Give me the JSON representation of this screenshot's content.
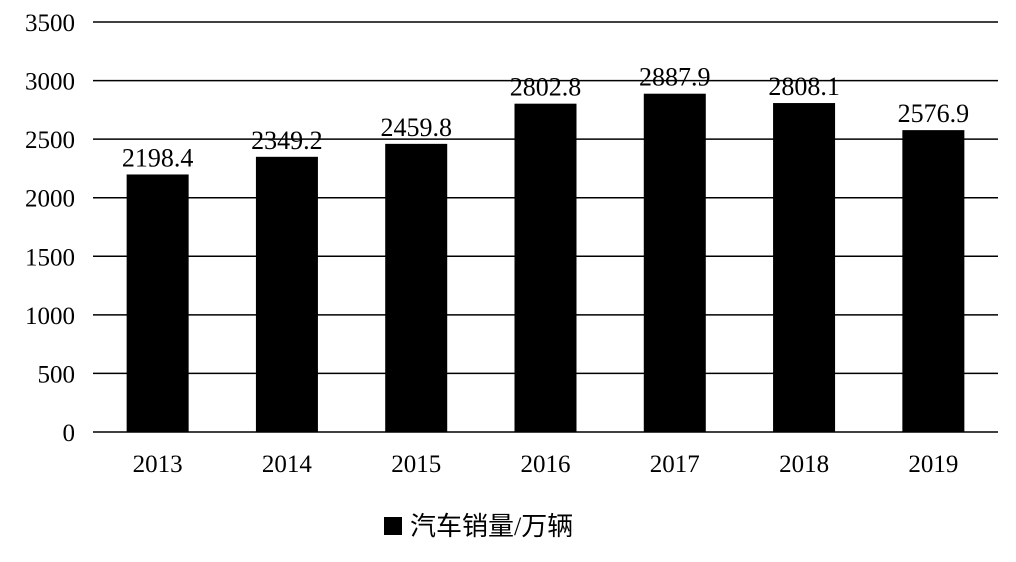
{
  "chart_data": {
    "type": "bar",
    "categories": [
      "2013",
      "2014",
      "2015",
      "2016",
      "2017",
      "2018",
      "2019"
    ],
    "series": [
      {
        "name": "汽车销量/万辆",
        "color": "#000000",
        "values": [
          2198.4,
          2349.2,
          2459.8,
          2802.8,
          2887.9,
          2808.1,
          2576.9
        ]
      }
    ],
    "ylim": [
      0,
      3500
    ],
    "yticks": [
      0,
      500,
      1000,
      1500,
      2000,
      2500,
      3000,
      3500
    ],
    "grid": true,
    "legend": "bottom"
  }
}
